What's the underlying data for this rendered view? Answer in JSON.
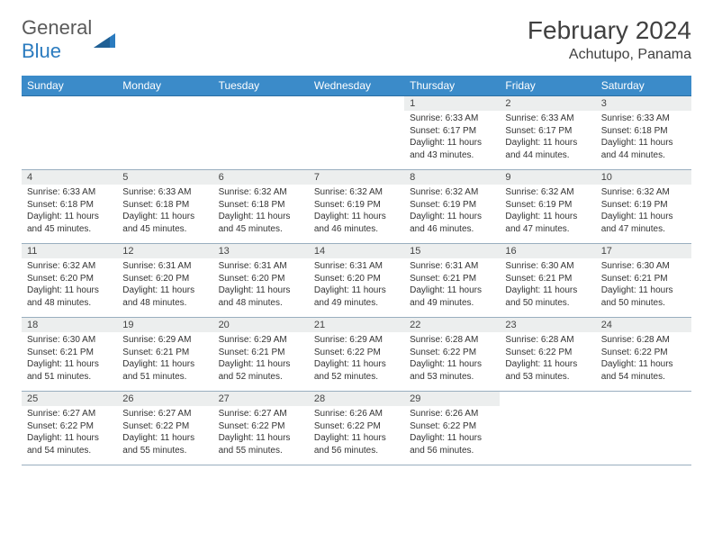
{
  "logo": {
    "part1": "General",
    "part2": "Blue"
  },
  "title": "February 2024",
  "location": "Achutupo, Panama",
  "colors": {
    "header_bg": "#3b8bc9",
    "header_text": "#ffffff",
    "daynum_bg": "#eceeee",
    "row_border": "#99aebf",
    "logo_gray": "#5a5a5a",
    "logo_blue": "#2b7bbf"
  },
  "day_headers": [
    "Sunday",
    "Monday",
    "Tuesday",
    "Wednesday",
    "Thursday",
    "Friday",
    "Saturday"
  ],
  "weeks": [
    [
      {
        "n": "",
        "empty": true
      },
      {
        "n": "",
        "empty": true
      },
      {
        "n": "",
        "empty": true
      },
      {
        "n": "",
        "empty": true
      },
      {
        "n": "1",
        "sr": "6:33 AM",
        "ss": "6:17 PM",
        "dl": "11 hours and 43 minutes."
      },
      {
        "n": "2",
        "sr": "6:33 AM",
        "ss": "6:17 PM",
        "dl": "11 hours and 44 minutes."
      },
      {
        "n": "3",
        "sr": "6:33 AM",
        "ss": "6:18 PM",
        "dl": "11 hours and 44 minutes."
      }
    ],
    [
      {
        "n": "4",
        "sr": "6:33 AM",
        "ss": "6:18 PM",
        "dl": "11 hours and 45 minutes."
      },
      {
        "n": "5",
        "sr": "6:33 AM",
        "ss": "6:18 PM",
        "dl": "11 hours and 45 minutes."
      },
      {
        "n": "6",
        "sr": "6:32 AM",
        "ss": "6:18 PM",
        "dl": "11 hours and 45 minutes."
      },
      {
        "n": "7",
        "sr": "6:32 AM",
        "ss": "6:19 PM",
        "dl": "11 hours and 46 minutes."
      },
      {
        "n": "8",
        "sr": "6:32 AM",
        "ss": "6:19 PM",
        "dl": "11 hours and 46 minutes."
      },
      {
        "n": "9",
        "sr": "6:32 AM",
        "ss": "6:19 PM",
        "dl": "11 hours and 47 minutes."
      },
      {
        "n": "10",
        "sr": "6:32 AM",
        "ss": "6:19 PM",
        "dl": "11 hours and 47 minutes."
      }
    ],
    [
      {
        "n": "11",
        "sr": "6:32 AM",
        "ss": "6:20 PM",
        "dl": "11 hours and 48 minutes."
      },
      {
        "n": "12",
        "sr": "6:31 AM",
        "ss": "6:20 PM",
        "dl": "11 hours and 48 minutes."
      },
      {
        "n": "13",
        "sr": "6:31 AM",
        "ss": "6:20 PM",
        "dl": "11 hours and 48 minutes."
      },
      {
        "n": "14",
        "sr": "6:31 AM",
        "ss": "6:20 PM",
        "dl": "11 hours and 49 minutes."
      },
      {
        "n": "15",
        "sr": "6:31 AM",
        "ss": "6:21 PM",
        "dl": "11 hours and 49 minutes."
      },
      {
        "n": "16",
        "sr": "6:30 AM",
        "ss": "6:21 PM",
        "dl": "11 hours and 50 minutes."
      },
      {
        "n": "17",
        "sr": "6:30 AM",
        "ss": "6:21 PM",
        "dl": "11 hours and 50 minutes."
      }
    ],
    [
      {
        "n": "18",
        "sr": "6:30 AM",
        "ss": "6:21 PM",
        "dl": "11 hours and 51 minutes."
      },
      {
        "n": "19",
        "sr": "6:29 AM",
        "ss": "6:21 PM",
        "dl": "11 hours and 51 minutes."
      },
      {
        "n": "20",
        "sr": "6:29 AM",
        "ss": "6:21 PM",
        "dl": "11 hours and 52 minutes."
      },
      {
        "n": "21",
        "sr": "6:29 AM",
        "ss": "6:22 PM",
        "dl": "11 hours and 52 minutes."
      },
      {
        "n": "22",
        "sr": "6:28 AM",
        "ss": "6:22 PM",
        "dl": "11 hours and 53 minutes."
      },
      {
        "n": "23",
        "sr": "6:28 AM",
        "ss": "6:22 PM",
        "dl": "11 hours and 53 minutes."
      },
      {
        "n": "24",
        "sr": "6:28 AM",
        "ss": "6:22 PM",
        "dl": "11 hours and 54 minutes."
      }
    ],
    [
      {
        "n": "25",
        "sr": "6:27 AM",
        "ss": "6:22 PM",
        "dl": "11 hours and 54 minutes."
      },
      {
        "n": "26",
        "sr": "6:27 AM",
        "ss": "6:22 PM",
        "dl": "11 hours and 55 minutes."
      },
      {
        "n": "27",
        "sr": "6:27 AM",
        "ss": "6:22 PM",
        "dl": "11 hours and 55 minutes."
      },
      {
        "n": "28",
        "sr": "6:26 AM",
        "ss": "6:22 PM",
        "dl": "11 hours and 56 minutes."
      },
      {
        "n": "29",
        "sr": "6:26 AM",
        "ss": "6:22 PM",
        "dl": "11 hours and 56 minutes."
      },
      {
        "n": "",
        "empty": true
      },
      {
        "n": "",
        "empty": true
      }
    ]
  ],
  "labels": {
    "sunrise": "Sunrise: ",
    "sunset": "Sunset: ",
    "daylight": "Daylight: "
  }
}
